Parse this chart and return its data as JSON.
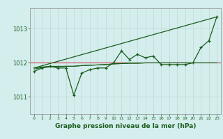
{
  "title": "Graphe pression niveau de la mer (hPa)",
  "bg_color": "#d4eeee",
  "grid_color_v": "#c8d8d8",
  "grid_color_h": "#ffb0b0",
  "line_color": "#1a5c1a",
  "text_color": "#1a5c1a",
  "xlim": [
    -0.5,
    23.5
  ],
  "ylim": [
    1010.5,
    1013.6
  ],
  "yticks": [
    1011,
    1012,
    1013
  ],
  "xticks": [
    0,
    1,
    2,
    3,
    4,
    5,
    6,
    7,
    8,
    9,
    10,
    11,
    12,
    13,
    14,
    15,
    16,
    17,
    18,
    19,
    20,
    21,
    22,
    23
  ],
  "hline_y": 1012.0,
  "hline_color": "#cc4444",
  "series_main_x": [
    0,
    1,
    2,
    3,
    4,
    5,
    6,
    7,
    8,
    9,
    10,
    11,
    12,
    13,
    14,
    15,
    16,
    17,
    18,
    19,
    20,
    21,
    22,
    23
  ],
  "series_main_y": [
    1011.75,
    1011.85,
    1011.9,
    1011.85,
    1011.85,
    1011.05,
    1011.7,
    1011.8,
    1011.85,
    1011.85,
    1012.0,
    1012.35,
    1012.1,
    1012.25,
    1012.15,
    1012.2,
    1011.95,
    1011.95,
    1011.95,
    1011.95,
    1012.0,
    1012.45,
    1012.65,
    1013.35
  ],
  "series_avg_x": [
    0,
    1,
    2,
    3,
    4,
    5,
    6,
    7,
    8,
    9,
    10,
    11,
    12,
    13,
    14,
    15,
    16,
    17,
    18,
    19,
    20,
    21,
    22,
    23
  ],
  "series_avg_y": [
    1011.85,
    1011.88,
    1011.9,
    1011.9,
    1011.9,
    1011.9,
    1011.92,
    1011.93,
    1011.94,
    1011.95,
    1011.97,
    1011.98,
    1011.99,
    1011.99,
    1012.0,
    1012.0,
    1012.0,
    1012.0,
    1012.0,
    1012.0,
    1012.0,
    1012.0,
    1012.0,
    1012.0
  ],
  "series_trend_x": [
    0,
    23
  ],
  "series_trend_y": [
    1011.85,
    1013.35
  ],
  "series_flat_x": [
    0,
    1,
    2,
    3,
    4,
    5,
    6,
    7,
    8,
    9,
    10,
    11,
    12,
    13,
    14,
    15,
    16,
    17,
    18,
    19,
    20,
    21,
    22,
    23
  ],
  "series_flat_y": [
    1011.82,
    1011.86,
    1011.88,
    1011.89,
    1011.9,
    1011.9,
    1011.92,
    1011.93,
    1011.94,
    1011.95,
    1011.97,
    1011.98,
    1011.99,
    1011.99,
    1012.0,
    1012.0,
    1012.0,
    1012.0,
    1012.0,
    1012.0,
    1012.0,
    1012.0,
    1012.0,
    1012.0
  ]
}
